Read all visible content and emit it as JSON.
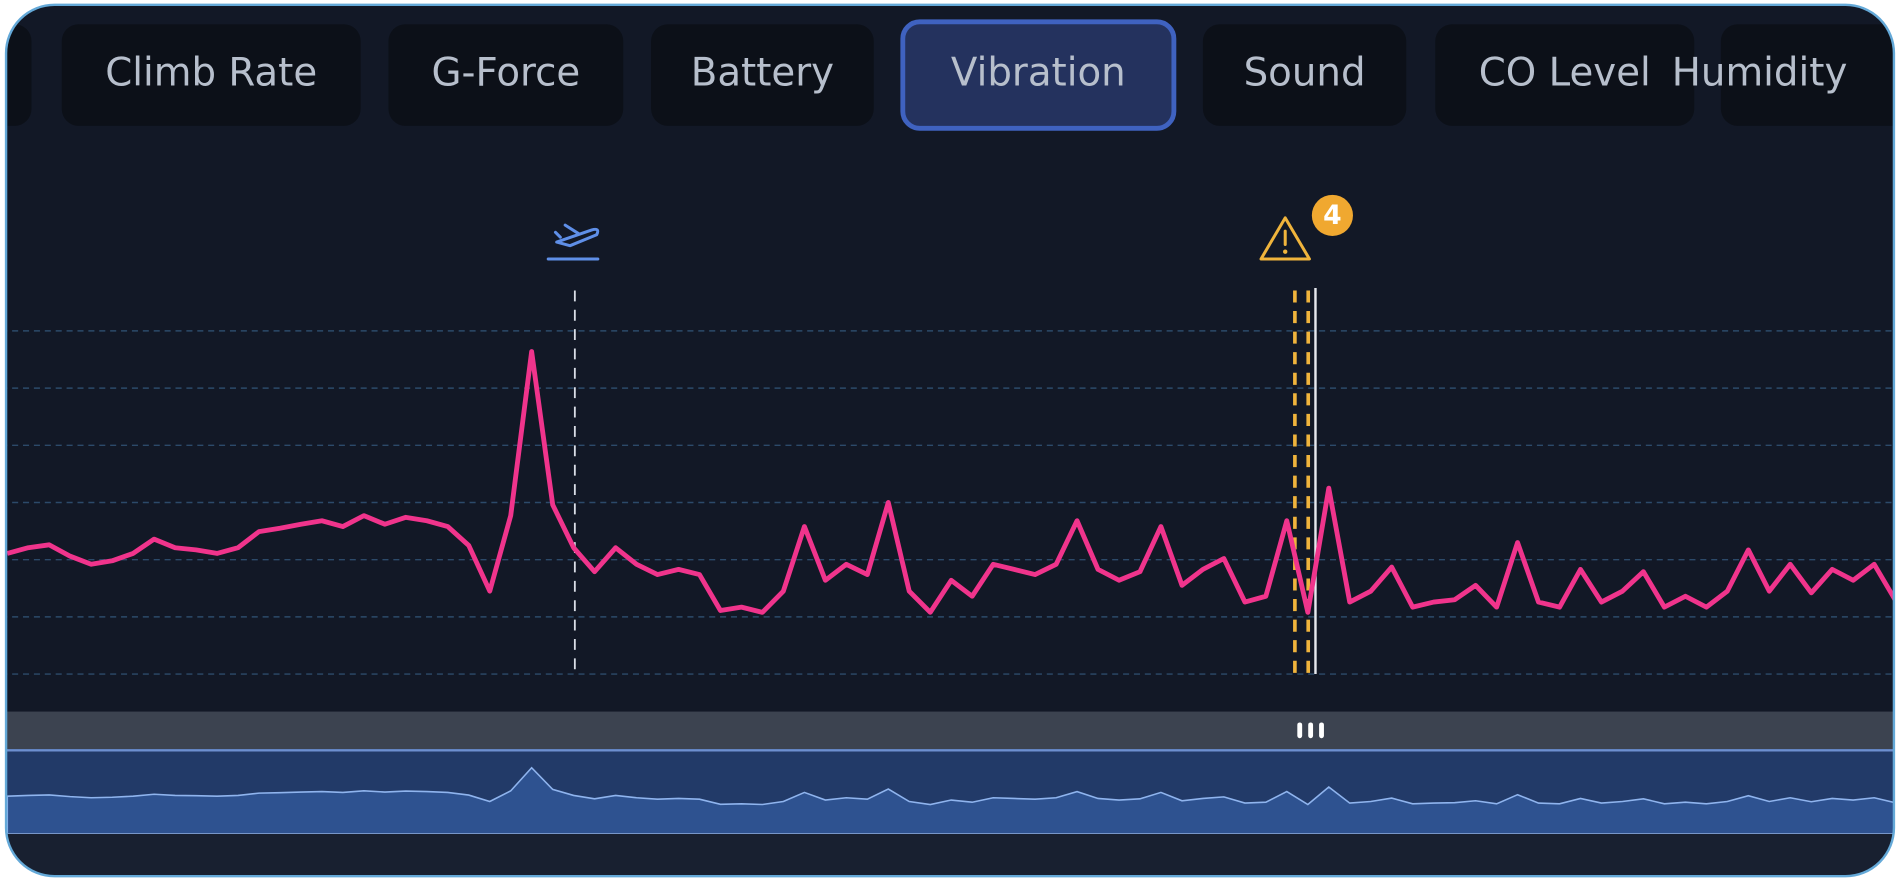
{
  "tabs": [
    {
      "label": "Climb Rate",
      "active": false
    },
    {
      "label": "G-Force",
      "active": false
    },
    {
      "label": "Battery",
      "active": false
    },
    {
      "label": "Vibration",
      "active": true
    },
    {
      "label": "Sound",
      "active": false
    },
    {
      "label": "CO Level",
      "active": false
    },
    {
      "label": "Humidity",
      "active": false
    }
  ],
  "alert_count": 4,
  "chart_data": {
    "type": "line",
    "color": "#f0348c",
    "values": [
      2.11,
      2.21,
      2.26,
      2.06,
      1.92,
      1.98,
      2.11,
      2.36,
      2.21,
      2.17,
      2.11,
      2.21,
      2.49,
      2.55,
      2.62,
      2.68,
      2.58,
      2.77,
      2.62,
      2.74,
      2.68,
      2.58,
      2.25,
      1.45,
      2.77,
      5.64,
      2.96,
      2.21,
      1.79,
      2.21,
      1.92,
      1.74,
      1.83,
      1.74,
      1.11,
      1.17,
      1.08,
      1.45,
      2.58,
      1.64,
      1.92,
      1.74,
      3.0,
      1.45,
      1.08,
      1.64,
      1.36,
      1.92,
      1.83,
      1.74,
      1.92,
      2.68,
      1.83,
      1.64,
      1.79,
      2.58,
      1.55,
      1.83,
      2.02,
      1.26,
      1.36,
      2.68,
      1.08,
      3.25,
      1.26,
      1.45,
      1.87,
      1.17,
      1.26,
      1.3,
      1.55,
      1.17,
      2.3,
      1.26,
      1.17,
      1.83,
      1.26,
      1.45,
      1.79,
      1.17,
      1.36,
      1.17,
      1.45,
      2.17,
      1.45,
      1.92,
      1.42,
      1.83,
      1.64,
      1.92,
      1.3
    ],
    "ylim": [
      0,
      6.75
    ],
    "yticks": [
      0,
      1,
      2,
      3,
      4,
      5,
      6
    ],
    "grid": true
  }
}
